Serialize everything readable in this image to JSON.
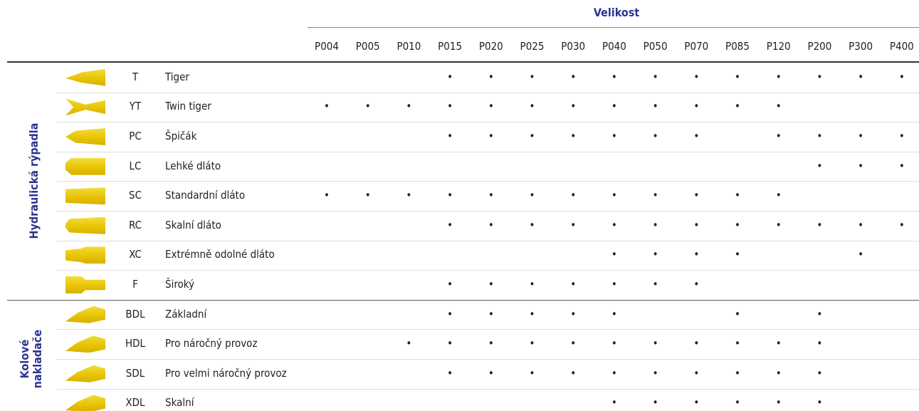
{
  "header": {
    "title": "Velikost",
    "sizes": [
      "P004",
      "P005",
      "P010",
      "P015",
      "P020",
      "P025",
      "P030",
      "P040",
      "P050",
      "P070",
      "P085",
      "P120",
      "P200",
      "P300",
      "P400"
    ]
  },
  "groups": [
    {
      "label": "Hydraulická rýpadla",
      "rows": [
        {
          "code": "T",
          "name": "Tiger",
          "cells": [
            null,
            null,
            null,
            "•",
            "•",
            "•",
            "•",
            "•",
            "•",
            "•",
            "•",
            "•",
            "•",
            "•",
            "•"
          ]
        },
        {
          "code": "YT",
          "name": "Twin tiger",
          "cells": [
            "•",
            "•",
            "•",
            "•",
            "•",
            "•",
            "•",
            "•",
            "•",
            "•",
            "•",
            "•",
            null,
            null,
            null
          ]
        },
        {
          "code": "PC",
          "name": "Špičák",
          "cells": [
            null,
            null,
            null,
            "•",
            "•",
            "•",
            "•",
            "•",
            "•",
            "•",
            null,
            "•",
            "•",
            "•",
            "•"
          ]
        },
        {
          "code": "LC",
          "name": "Lehké dláto",
          "cells": [
            null,
            null,
            null,
            null,
            null,
            null,
            null,
            null,
            null,
            null,
            null,
            null,
            "•",
            "•",
            "•"
          ]
        },
        {
          "code": "SC",
          "name": "Standardní dláto",
          "cells": [
            "•",
            "•",
            "•",
            "•",
            "•",
            "•",
            "•",
            "•",
            "•",
            "•",
            "•",
            "•",
            null,
            null,
            null
          ]
        },
        {
          "code": "RC",
          "name": "Skalní dláto",
          "cells": [
            null,
            null,
            null,
            "•",
            "•",
            "•",
            "•",
            "•",
            "•",
            "•",
            "•",
            "•",
            "•",
            "•",
            "•"
          ]
        },
        {
          "code": "XC",
          "name": "Extrémně odolné dláto",
          "cells": [
            null,
            null,
            null,
            null,
            null,
            null,
            null,
            "•",
            "•",
            "•",
            "•",
            null,
            null,
            "•",
            null
          ]
        },
        {
          "code": "F",
          "name": "Široký",
          "cells": [
            null,
            null,
            null,
            "•",
            "•",
            "•",
            "•",
            "•",
            "•",
            "•",
            null,
            null,
            null,
            null,
            null
          ]
        }
      ]
    },
    {
      "label": "Kolové nakladače",
      "rows": [
        {
          "code": "BDL",
          "name": "Základní",
          "cells": [
            null,
            null,
            null,
            "•",
            "•",
            "•",
            "•",
            "•",
            null,
            null,
            "•",
            null,
            "•",
            null,
            null
          ]
        },
        {
          "code": "HDL",
          "name": "Pro náročný provoz",
          "cells": [
            null,
            null,
            "•",
            "•",
            "•",
            "•",
            "•",
            "•",
            "•",
            "•",
            "•",
            "•",
            "•",
            null,
            null
          ]
        },
        {
          "code": "SDL",
          "name": "Pro velmi náročný provoz",
          "cells": [
            null,
            null,
            null,
            "•",
            "•",
            "•",
            "•",
            "•",
            "•",
            "•",
            "•",
            "•",
            "•",
            null,
            null
          ]
        },
        {
          "code": "XDL",
          "name": "Skalní",
          "cells": [
            null,
            null,
            null,
            null,
            null,
            null,
            null,
            "•",
            "•",
            "•",
            "•",
            "•",
            "•",
            null,
            null
          ]
        }
      ]
    }
  ]
}
